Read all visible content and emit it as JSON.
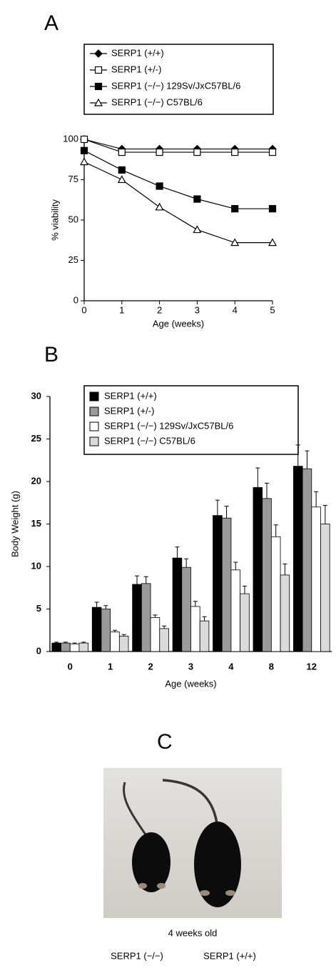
{
  "panels": [
    "A",
    "B",
    "C"
  ],
  "chart_data": [
    {
      "type": "line",
      "xlabel": "Age (weeks)",
      "ylabel": "% viability",
      "x": [
        0,
        1,
        2,
        3,
        4,
        5
      ],
      "xlim": [
        0,
        5
      ],
      "xticks": [
        0,
        1,
        2,
        3,
        4,
        5
      ],
      "ylim": [
        0,
        100
      ],
      "yticks": [
        0,
        25,
        50,
        75,
        100
      ],
      "series": [
        {
          "name": "SERP1 (+/+)",
          "color": "#000000",
          "marker": "diamond",
          "values": [
            100,
            94,
            94,
            94,
            94,
            94
          ]
        },
        {
          "name": "SERP1 (+/-)",
          "color": "#000000",
          "marker": "square-open",
          "values": [
            100,
            92,
            92,
            92,
            92,
            92
          ]
        },
        {
          "name": "SERP1 (−/−) 129Sv/JxC57BL/6",
          "color": "#000000",
          "marker": "square",
          "values": [
            93,
            81,
            71,
            63,
            57,
            57
          ]
        },
        {
          "name": "SERP1 (−/−) C57BL/6",
          "color": "#000000",
          "marker": "triangle-open",
          "values": [
            86,
            75,
            58,
            44,
            36,
            36
          ]
        }
      ]
    },
    {
      "type": "bar",
      "xlabel": "Age (weeks)",
      "ylabel": "Body Weight (g)",
      "categories": [
        "0",
        "1",
        "2",
        "3",
        "4",
        "8",
        "12"
      ],
      "ylim": [
        0,
        30
      ],
      "yticks": [
        0,
        5,
        10,
        15,
        20,
        25,
        30
      ],
      "series": [
        {
          "name": "SERP1 (+/+)",
          "color": "#000000",
          "values": [
            1.0,
            5.2,
            7.9,
            11.0,
            16.0,
            19.3,
            21.8
          ],
          "errors": [
            0.1,
            0.6,
            1.0,
            1.3,
            1.8,
            2.3,
            2.5
          ]
        },
        {
          "name": "SERP1 (+/-)",
          "color": "#9a9a9a",
          "values": [
            1.0,
            5.0,
            8.0,
            9.9,
            15.7,
            18.0,
            21.5
          ],
          "errors": [
            0.1,
            0.4,
            0.8,
            1.0,
            1.4,
            1.8,
            2.1
          ]
        },
        {
          "name": "SERP1 (−/−)  129Sv/JxC57BL/6",
          "color": "#ffffff",
          "values": [
            0.9,
            2.3,
            4.0,
            5.3,
            9.6,
            13.5,
            17.0
          ],
          "errors": [
            0.1,
            0.2,
            0.3,
            0.6,
            0.9,
            1.4,
            1.8
          ]
        },
        {
          "name": "SERP1 (−/−)  C57BL/6",
          "color": "#dadada",
          "values": [
            1.0,
            1.8,
            2.7,
            3.6,
            6.8,
            9.0,
            15.0
          ],
          "errors": [
            0.1,
            0.2,
            0.3,
            0.5,
            0.9,
            1.3,
            2.2
          ]
        }
      ]
    }
  ],
  "photo": {
    "caption": "4 weeks old",
    "labels": [
      "SERP1 (−/−)",
      "SERP1 (+/+)"
    ]
  }
}
